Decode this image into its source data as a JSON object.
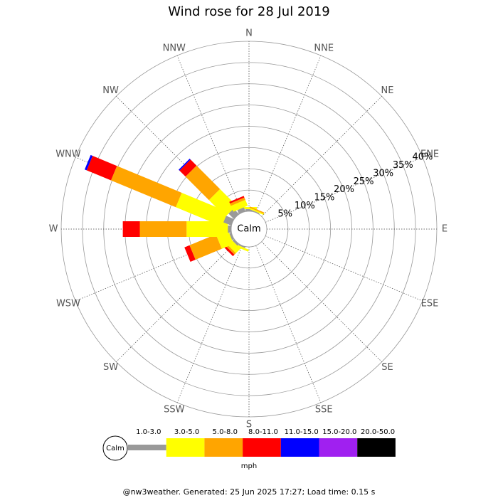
{
  "chart_data": {
    "type": "windrose",
    "title": "Wind rose for 28 Jul 2019",
    "categories": [
      "N",
      "NNE",
      "NE",
      "ENE",
      "E",
      "ESE",
      "SE",
      "SSE",
      "S",
      "SSW",
      "SW",
      "WSW",
      "W",
      "WNW",
      "NW",
      "NNW"
    ],
    "calm_label": "Calm",
    "ylim": [
      0,
      40
    ],
    "yticks": [
      {
        "value": 5,
        "label": "5%"
      },
      {
        "value": 10,
        "label": "10%"
      },
      {
        "value": 15,
        "label": "15%"
      },
      {
        "value": 20,
        "label": "20%"
      },
      {
        "value": 25,
        "label": "25%"
      },
      {
        "value": 30,
        "label": "30%"
      },
      {
        "value": 35,
        "label": "35%"
      },
      {
        "value": 40,
        "label": "40%"
      }
    ],
    "series": [
      {
        "name": "1.0-3.0",
        "color": "#999999",
        "values": [
          0.5,
          0.2,
          0,
          0,
          0,
          0,
          0,
          0,
          0,
          0.3,
          0.5,
          0.5,
          0.8,
          2,
          1.8,
          1
        ]
      },
      {
        "name": "3.0-5.0",
        "color": "#ffff00",
        "values": [
          0.5,
          0.3,
          0,
          0,
          0,
          0,
          0,
          0,
          0,
          0.5,
          1.5,
          3,
          9.7,
          11.7,
          5.5,
          1.5
        ]
      },
      {
        "name": "5.0-8.0",
        "color": "#ffa500",
        "values": [
          0,
          0.3,
          0,
          0,
          0,
          0,
          0,
          0,
          0,
          0,
          0.5,
          6.7,
          11,
          16.5,
          7.8,
          0.6
        ]
      },
      {
        "name": "8.0-11.0",
        "color": "#ff0000",
        "values": [
          0,
          0,
          0,
          0,
          0,
          0,
          0,
          0,
          0,
          0,
          0.5,
          1.3,
          4,
          6.2,
          2,
          0.4
        ]
      },
      {
        "name": "11.0-15.0",
        "color": "#0000ff",
        "values": [
          0,
          0,
          0,
          0,
          0,
          0,
          0,
          0,
          0,
          0,
          0,
          0,
          0,
          0.5,
          0.3,
          0
        ]
      },
      {
        "name": "15.0-20.0",
        "color": "#a020f0",
        "values": [
          0,
          0,
          0,
          0,
          0,
          0,
          0,
          0,
          0,
          0,
          0,
          0,
          0,
          0,
          0,
          0
        ]
      },
      {
        "name": "20.0-50.0",
        "color": "#000000",
        "values": [
          0,
          0,
          0,
          0,
          0,
          0,
          0,
          0,
          0,
          0,
          0,
          0,
          0,
          0,
          0,
          0
        ]
      }
    ],
    "legend_unit": "mph",
    "footer": "@nw3weather. Generated: 25 Jun 2025 17:27; Load time: 0.15 s"
  }
}
